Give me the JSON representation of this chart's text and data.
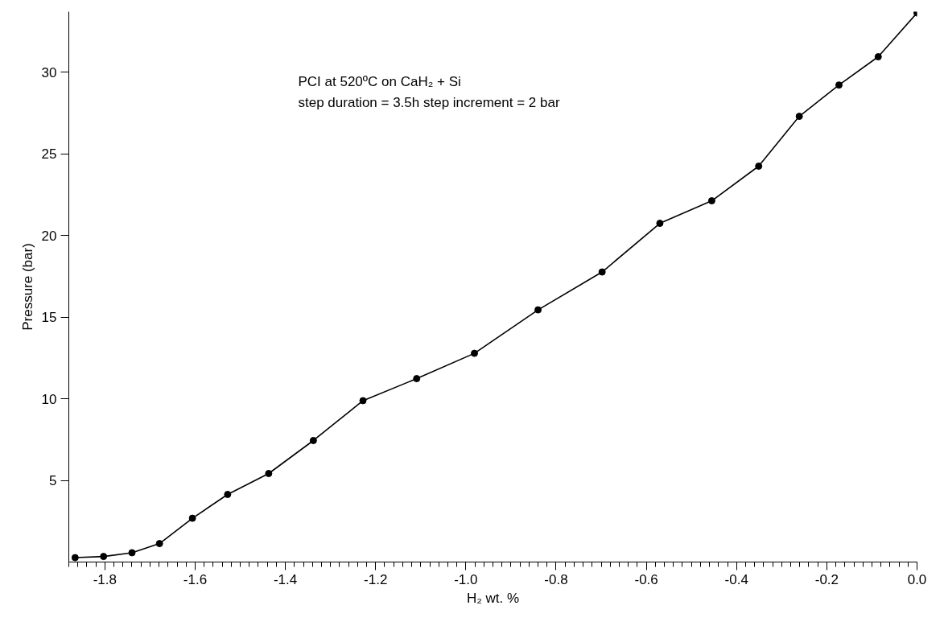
{
  "chart_data": {
    "type": "line",
    "xlabel": "H₂ wt. %",
    "ylabel": "Pressure (bar)",
    "annotations": [
      "PCI at 520ºC on CaH₂ + Si",
      "step duration = 3.5h step increment = 2 bar"
    ],
    "x": [
      -1.866,
      -1.803,
      -1.74,
      -1.679,
      -1.606,
      -1.528,
      -1.437,
      -1.338,
      -1.228,
      -1.109,
      -0.981,
      -0.84,
      -0.698,
      -0.57,
      -0.455,
      -0.351,
      -0.261,
      -0.173,
      -0.086,
      0.0
    ],
    "series": [
      {
        "color": "#000000",
        "values": [
          0.27,
          0.34,
          0.57,
          1.13,
          2.68,
          4.14,
          5.42,
          7.44,
          9.88,
          11.23,
          12.78,
          15.44,
          17.76,
          20.74,
          22.12,
          24.24,
          27.29,
          29.21,
          30.94,
          33.62
        ]
      }
    ],
    "xlim": [
      -1.88,
      0.0
    ],
    "ylim": [
      0,
      33.7
    ],
    "xticks": [
      {
        "value": -1.8,
        "label": "-1.8"
      },
      {
        "value": -1.6,
        "label": "-1.6"
      },
      {
        "value": -1.4,
        "label": "-1.4"
      },
      {
        "value": -1.2,
        "label": "-1.2"
      },
      {
        "value": -1.0,
        "label": "-1.0"
      },
      {
        "value": -0.8,
        "label": "-0.8"
      },
      {
        "value": -0.6,
        "label": "-0.6"
      },
      {
        "value": -0.4,
        "label": "-0.4"
      },
      {
        "value": -0.2,
        "label": "-0.2"
      },
      {
        "value": 0.0,
        "label": "0.0"
      }
    ],
    "yticks": [
      5,
      10,
      15,
      20,
      25,
      30
    ],
    "grid": false,
    "marker": "circle",
    "line_style": "solid"
  }
}
